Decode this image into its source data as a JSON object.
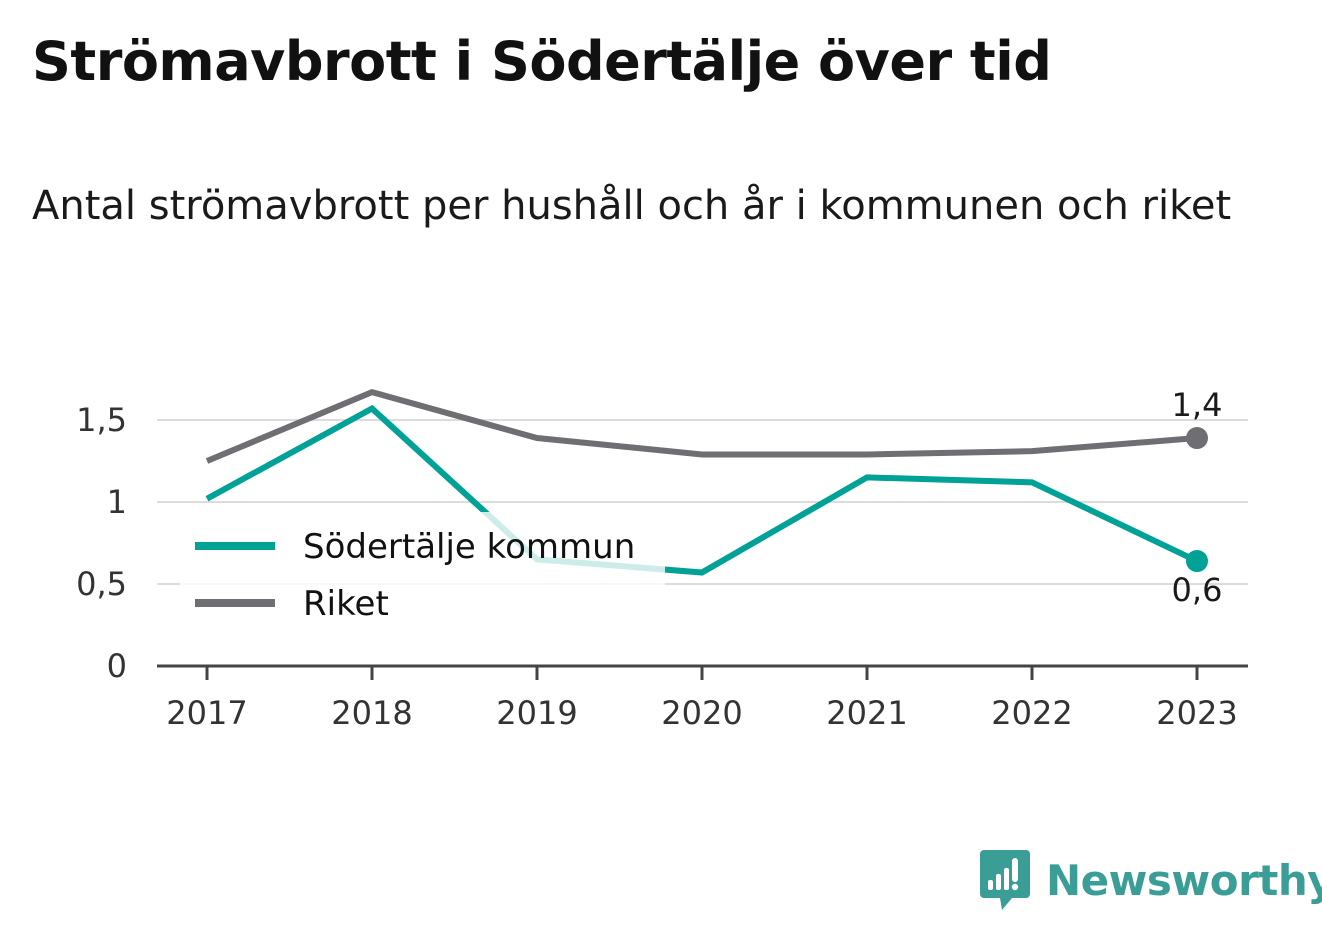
{
  "header": {
    "title": "Strömavbrott i Södertälje över tid",
    "subtitle": "Antal strömavbrott per hushåll och år i kommunen och riket"
  },
  "branding": {
    "logo_text": "Newsworthy",
    "logo_icon": "bar-chart-speech-bubble-icon",
    "color": "#3a9e96"
  },
  "chart_data": {
    "type": "line",
    "title": "",
    "xlabel": "",
    "ylabel": "",
    "x": [
      "2017",
      "2018",
      "2019",
      "2020",
      "2021",
      "2022",
      "2023"
    ],
    "ylim": [
      0,
      1.7
    ],
    "yticks": [
      0,
      0.5,
      1,
      1.5
    ],
    "ytick_labels": [
      "0",
      "0,5",
      "1",
      "1,5"
    ],
    "grid": true,
    "legend": "center-left",
    "series": [
      {
        "name": "Södertälje kommun",
        "color": "#00a197",
        "values": [
          1.02,
          1.57,
          0.65,
          0.57,
          1.15,
          1.12,
          0.64
        ],
        "end_label": "0,6"
      },
      {
        "name": "Riket",
        "color": "#6e6e73",
        "values": [
          1.25,
          1.67,
          1.39,
          1.29,
          1.29,
          1.31,
          1.39
        ],
        "end_label": "1,4"
      }
    ]
  }
}
